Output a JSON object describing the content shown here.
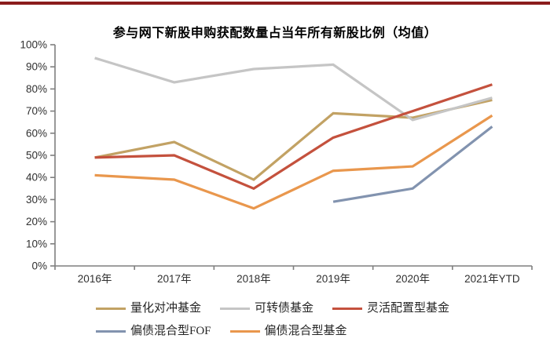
{
  "page": {
    "top_bar_color": "#8B1D1D",
    "background": "#FFFFFF"
  },
  "chart_data": {
    "type": "line",
    "title": "参与网下新股申购获配数量占当年所有新股比例（均值）",
    "categories": [
      "2016年",
      "2017年",
      "2018年",
      "2019年",
      "2020年",
      "2021年YTD"
    ],
    "series": [
      {
        "name": "量化对冲基金",
        "color": "#C2A264",
        "values": [
          49,
          56,
          39,
          69,
          67,
          75
        ]
      },
      {
        "name": "可转债基金",
        "color": "#C5C5C5",
        "values": [
          94,
          83,
          89,
          91,
          66,
          76
        ]
      },
      {
        "name": "灵活配置型基金",
        "color": "#C4513D",
        "values": [
          49,
          50,
          35,
          58,
          70,
          82
        ]
      },
      {
        "name": "偏债混合型FOF",
        "color": "#8293AF",
        "values": [
          null,
          null,
          null,
          29,
          35,
          63
        ]
      },
      {
        "name": "偏债混合型基金",
        "color": "#E9974D",
        "values": [
          41,
          39,
          26,
          43,
          45,
          68
        ]
      }
    ],
    "unit": "%",
    "ylim": [
      0,
      100
    ],
    "y_tick_step": 10,
    "y_tick_labels": [
      "0%",
      "10%",
      "20%",
      "30%",
      "40%",
      "50%",
      "60%",
      "70%",
      "80%",
      "90%",
      "100%"
    ],
    "grid": false,
    "legend_position": "bottom",
    "legend_rows": [
      [
        0,
        1,
        2
      ],
      [
        3,
        4
      ]
    ],
    "axis_color": "#7F7F7F",
    "label_color": "#303030"
  }
}
